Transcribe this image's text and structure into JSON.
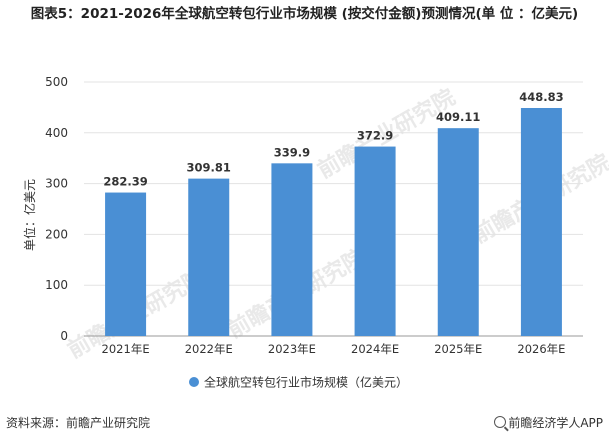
{
  "title": "图表5：2021-2026年全球航空转包行业市场规模 (按交付金额)预测情况(单 位 ：亿美元)",
  "source": "资料来源：前瞻产业研究院",
  "credit": "前瞻经济学人APP",
  "watermark": "前瞻产业研究院",
  "colors": {
    "bar": "#4a8fd4",
    "grid": "#e3e3e3",
    "axis": "#999999",
    "text": "#333333"
  },
  "chart_data": {
    "type": "bar",
    "categories": [
      "2021年E",
      "2022年E",
      "2023年E",
      "2024年E",
      "2025年E",
      "2026年E"
    ],
    "series": [
      {
        "name": "全球航空转包行业市场规模（亿美元）",
        "values": [
          282.39,
          309.81,
          339.9,
          372.9,
          409.11,
          448.83
        ],
        "labels": [
          "282.39",
          "309.81",
          "339.9",
          "372.9",
          "409.11",
          "448.83"
        ]
      }
    ],
    "yticks": [
      "0",
      "100",
      "200",
      "300",
      "400",
      "500"
    ],
    "ylabel": "单位：亿美元",
    "xlabel": "",
    "ylim": [
      0,
      500
    ],
    "grid": true,
    "legend": "bottom"
  }
}
